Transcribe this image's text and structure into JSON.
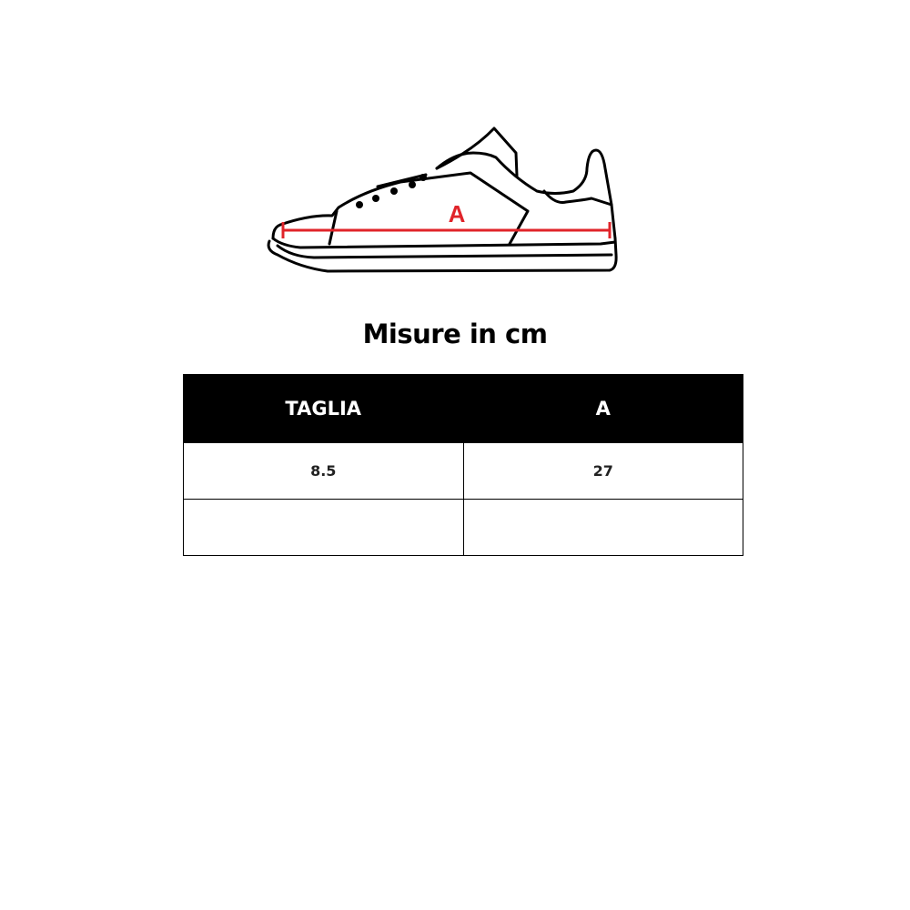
{
  "illustration": {
    "icon": "sneaker-outline-icon",
    "measure_label": "A",
    "measure_color": "#e0242a"
  },
  "title": "Misure in cm",
  "table": {
    "headers": [
      "TAGLIA",
      "A"
    ],
    "rows": [
      [
        "8.5",
        "27"
      ],
      [
        "",
        ""
      ]
    ]
  }
}
